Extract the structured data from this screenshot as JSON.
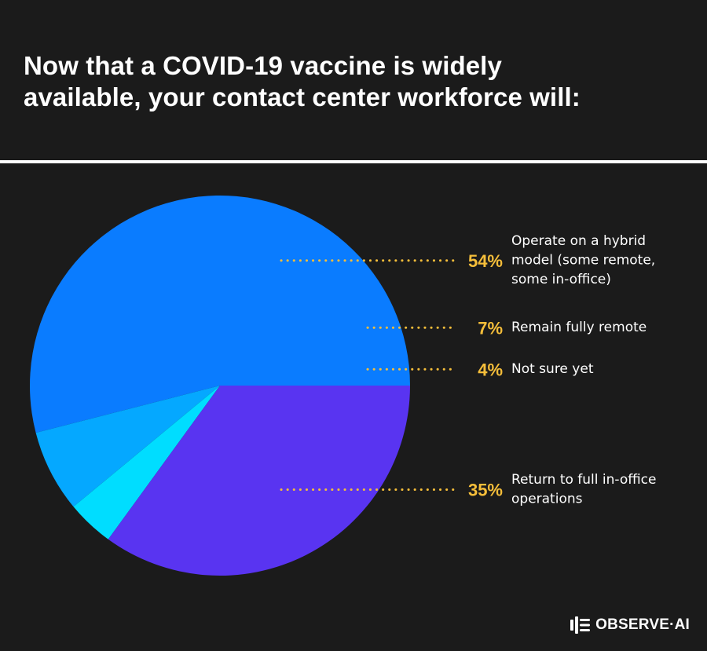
{
  "title_line1": "Now that a COVID-19 vaccine is widely",
  "title_line2": "available, your contact center workforce will:",
  "brand": "OBSERVE·AI",
  "chart_data": {
    "type": "pie",
    "title": "Now that a COVID-19 vaccine is widely available, your contact center workforce will:",
    "slices": [
      {
        "label": "Operate on a hybrid model (some remote, some in-office)",
        "lines": [
          "Operate on a hybrid",
          "model (some remote,",
          "some in-office)"
        ],
        "value": 54,
        "display": "54%",
        "color": "#0a7cff"
      },
      {
        "label": "Remain fully remote",
        "lines": [
          "Remain fully remote"
        ],
        "value": 7,
        "display": "7%",
        "color": "#05a8ff"
      },
      {
        "label": "Not sure yet",
        "lines": [
          "Not sure yet"
        ],
        "value": 4,
        "display": "4%",
        "color": "#00ddff"
      },
      {
        "label": "Return to full in-office operations",
        "lines": [
          "Return to full in-office",
          "operations"
        ],
        "value": 35,
        "display": "35%",
        "color": "#5934f1"
      }
    ],
    "label_color": "#f5be3a"
  }
}
